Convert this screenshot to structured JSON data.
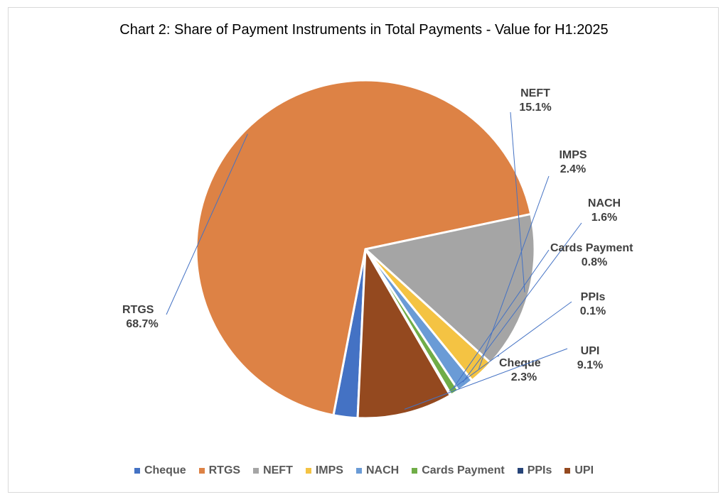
{
  "chart_data": {
    "type": "pie",
    "title": "Chart 2: Share of Payment Instruments in Total Payments - Value for H1:2025",
    "slices": [
      {
        "name": "Cheque",
        "value": 2.3,
        "label": "2.3%",
        "color": "#4472c4"
      },
      {
        "name": "RTGS",
        "value": 68.7,
        "label": "68.7%",
        "color": "#dd8245"
      },
      {
        "name": "NEFT",
        "value": 15.1,
        "label": "15.1%",
        "color": "#a5a5a5"
      },
      {
        "name": "IMPS",
        "value": 2.4,
        "label": "2.4%",
        "color": "#f4c343"
      },
      {
        "name": "NACH",
        "value": 1.6,
        "label": "1.6%",
        "color": "#6a9bd6"
      },
      {
        "name": "Cards Payment",
        "value": 0.8,
        "label": "0.8%",
        "color": "#70ad47"
      },
      {
        "name": "PPIs",
        "value": 0.1,
        "label": "0.1%",
        "color": "#264478"
      },
      {
        "name": "UPI",
        "value": 9.1,
        "label": "9.1%",
        "color": "#94491f"
      }
    ],
    "legend_position": "bottom"
  }
}
